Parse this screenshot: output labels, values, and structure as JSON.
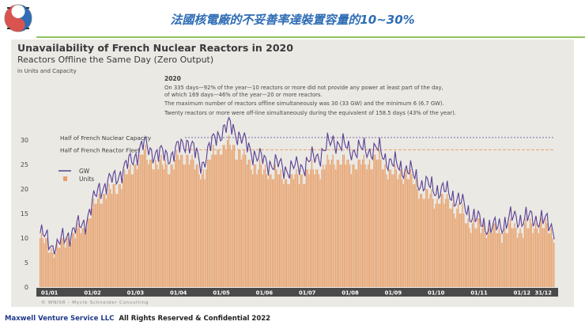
{
  "slide_title": "法國核電廠的不妥善率達裝置容量的10~30%",
  "footer": {
    "company": "Maxwell Venture Service LLC",
    "rights": "All Rights Reserved & Confidential 2022"
  },
  "colors": {
    "bars": "#e8a06a",
    "line": "#5b3f93",
    "ref_capacity": "#7a6ea8",
    "ref_fleet": "#e8a06a",
    "accent_title": "#2f6db5",
    "rule": "#8fc35c"
  },
  "chart_data": {
    "type": "bar",
    "title": "Unavailability of French Nuclear Reactors in 2020",
    "subtitle": "Reactors Offline the Same Day (Zero Output)",
    "units_note": "in Units and Capacity",
    "year_label": "2020",
    "annotation_lines": [
      "On 335 days—92% of the year—10 reactors or more did not provide any power at least part of the day,",
      "of which 169 days—46% of the year—20 or more reactors.",
      "The maximum number of reactors offline simultaneously was 30 (33 GW) and the minimum 6 (6.7 GW).",
      "Twenty reactors or more were off-line simultaneously during the equivalent of 158.5 days (43% of the year)."
    ],
    "reference_lines": [
      {
        "label": "Half of French Nuclear Capacity",
        "value": 30.5,
        "style": "dotted"
      },
      {
        "label": "Half of French Reactor Fleet",
        "value": 28,
        "style": "dashed"
      }
    ],
    "legend": [
      {
        "name": "GW",
        "kind": "line"
      },
      {
        "name": "Units",
        "kind": "bar"
      }
    ],
    "x_tick_labels": [
      "01/01",
      "01/02",
      "01/03",
      "01/04",
      "01/05",
      "01/06",
      "01/07",
      "01/08",
      "01/09",
      "01/10",
      "01/11",
      "01/12",
      "31/12"
    ],
    "ylim": [
      0,
      35
    ],
    "yticks": [
      0,
      5,
      10,
      15,
      20,
      25,
      30
    ],
    "credit": "© WNISR - Mycle Schneider Consulting",
    "month_anchors": {
      "units": [
        10,
        7,
        10,
        12,
        18,
        20,
        23,
        27,
        25,
        25,
        27,
        23,
        28,
        29,
        26,
        24,
        23,
        22,
        23,
        24,
        26,
        25,
        25,
        26,
        23,
        23,
        19,
        18,
        17,
        14,
        12,
        11,
        12,
        12,
        13,
        11
      ],
      "gw": [
        11,
        8,
        11,
        13,
        20,
        22,
        25,
        29,
        27,
        27,
        30,
        25,
        31,
        33,
        29,
        26,
        25,
        24,
        25,
        27,
        30,
        28,
        28,
        28,
        25,
        24,
        21,
        20,
        19,
        16,
        13,
        12,
        14,
        14,
        14,
        12
      ]
    }
  }
}
